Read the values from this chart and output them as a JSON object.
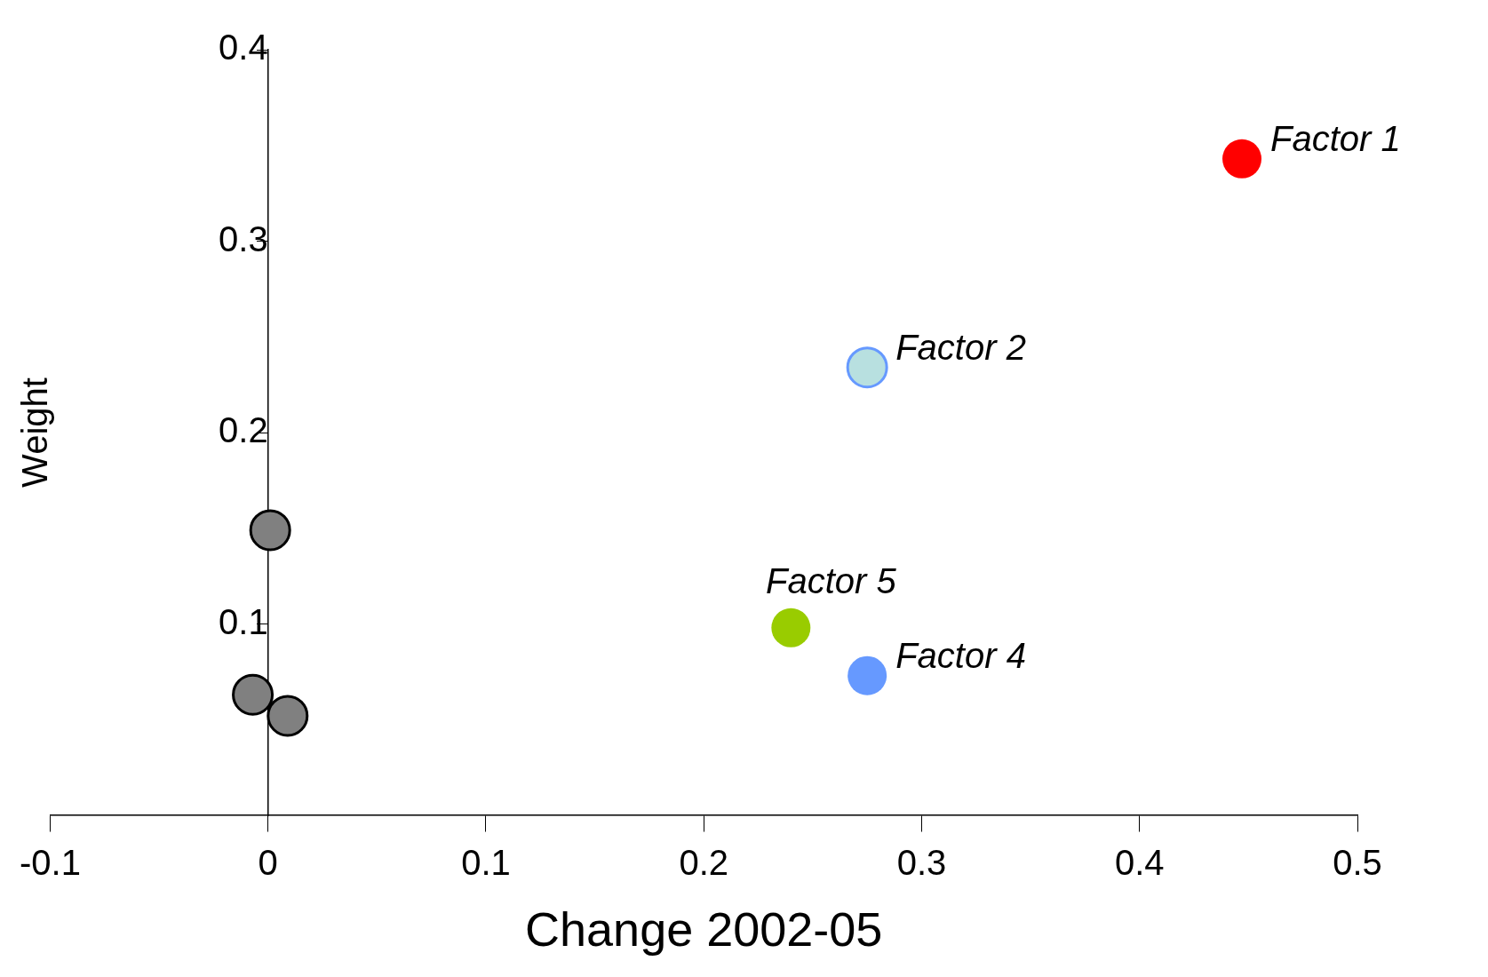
{
  "chart_data": {
    "type": "scatter",
    "xlabel": "Change 2002-05",
    "ylabel": "Weight",
    "xlim": [
      -0.1,
      0.5
    ],
    "xticks": [
      -0.1,
      0,
      0.1,
      0.2,
      0.3,
      0.4,
      0.5
    ],
    "ylim": [
      0,
      0.4
    ],
    "yticks": [
      0.1,
      0.2,
      0.3,
      0.4
    ],
    "grid": false,
    "legend": false,
    "marker": "circle",
    "series": [
      {
        "name": "Factor 1",
        "color": "#ff0000",
        "x": [
          0.447
        ],
        "values": [
          0.343
        ]
      },
      {
        "name": "Factor 2",
        "color": "#b8e0e0",
        "x": [
          0.275
        ],
        "values": [
          0.234
        ]
      },
      {
        "name": "Factor 5",
        "color": "#99cc00",
        "x": [
          0.24
        ],
        "values": [
          0.098
        ]
      },
      {
        "name": "Factor 4",
        "color": "#6699ff",
        "x": [
          0.275
        ],
        "values": [
          0.073
        ]
      },
      {
        "color": "#808080",
        "x": [
          0.001,
          -0.007,
          0.009
        ],
        "values": [
          0.149,
          0.063,
          0.052
        ]
      }
    ]
  }
}
